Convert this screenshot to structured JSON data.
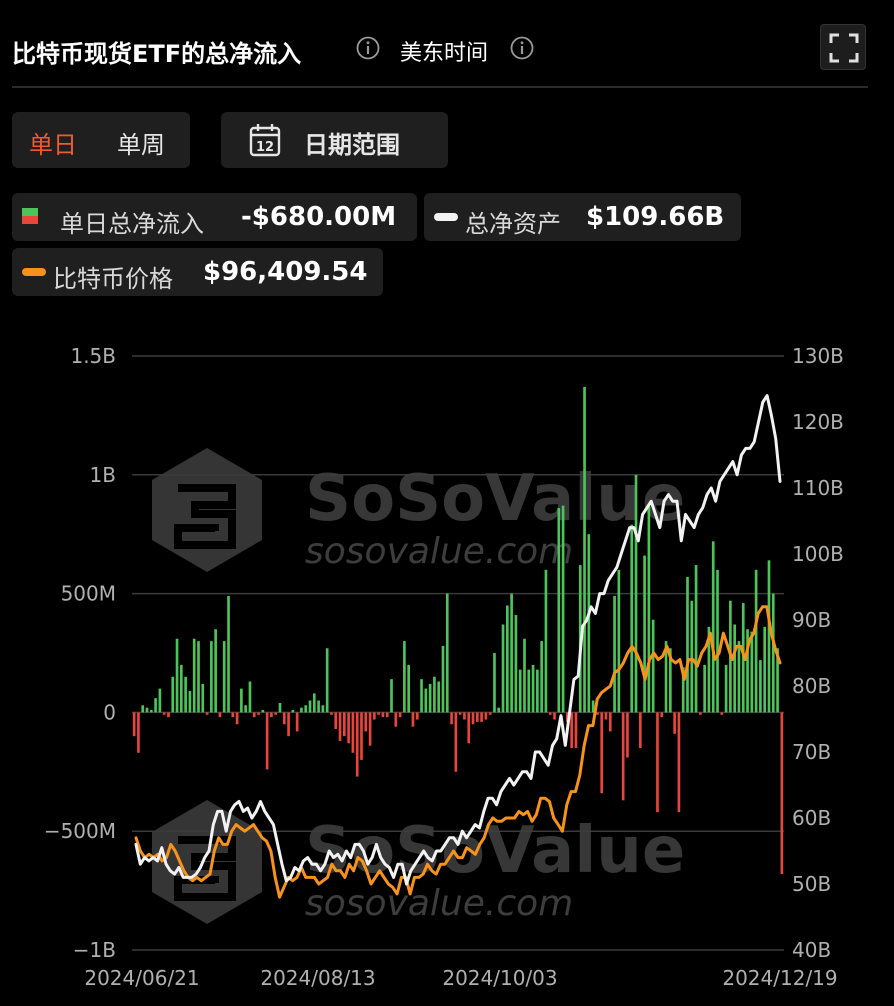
{
  "header": {
    "title": "比特币现货ETF的总净流入",
    "timezone": "美东时间"
  },
  "period_tabs": [
    {
      "label": "单日",
      "active": true
    },
    {
      "label": "单周",
      "active": false
    }
  ],
  "date_range_button": {
    "label": "日期范围",
    "calendar_day": "12"
  },
  "legend": {
    "inflow": {
      "label": "单日总净流入",
      "value": "-$680.00M"
    },
    "assets": {
      "label": "总净资产",
      "value": "$109.66B"
    },
    "price": {
      "label": "比特币价格",
      "value": "$96,409.54"
    }
  },
  "watermark": {
    "brand": "SoSoValue",
    "url": "sosovalue.com"
  },
  "colors": {
    "inflow_positive": "#4cc45a",
    "inflow_negative": "#e8453c",
    "assets_line": "#f2f2f2",
    "price_line": "#f7931a",
    "accent": "#ef5a33"
  },
  "chart_data": {
    "type": "bar",
    "title": "比特币现货ETF的总净流入",
    "x_tick_labels": [
      "2024/06/21",
      "2024/08/13",
      "2024/10/03",
      "2024/12/19"
    ],
    "left_axis": {
      "ticks": [
        "1.5B",
        "1B",
        "500M",
        "0",
        "−500M",
        "−1B"
      ],
      "range": [
        -1000,
        1500
      ],
      "unit": "M"
    },
    "right_axis": {
      "ticks": [
        "130B",
        "120B",
        "110B",
        "100B",
        "90B",
        "80B",
        "70B",
        "60B",
        "50B",
        "40B"
      ],
      "range": [
        40,
        130
      ],
      "unit": "B"
    },
    "grid": true,
    "series": [
      {
        "name": "单日总净流入",
        "type": "bar",
        "axis": "left",
        "values": [
          -100,
          -170,
          30,
          20,
          10,
          60,
          100,
          -10,
          -20,
          150,
          310,
          200,
          150,
          90,
          310,
          300,
          120,
          -10,
          300,
          350,
          -20,
          300,
          490,
          -20,
          -50,
          100,
          30,
          130,
          -20,
          -10,
          10,
          -240,
          -20,
          -10,
          40,
          -50,
          -100,
          10,
          -80,
          20,
          30,
          50,
          80,
          50,
          30,
          270,
          -10,
          -70,
          -120,
          -100,
          -130,
          -170,
          -270,
          -200,
          -80,
          -140,
          -30,
          -10,
          -20,
          -20,
          140,
          -60,
          -20,
          300,
          200,
          -60,
          -30,
          140,
          100,
          120,
          150,
          130,
          280,
          500,
          -50,
          -250,
          -10,
          -30,
          -130,
          -50,
          -40,
          -40,
          -30,
          -10,
          250,
          20,
          370,
          450,
          500,
          410,
          180,
          310,
          180,
          200,
          180,
          300,
          600,
          -10,
          -30,
          860,
          870,
          -40,
          -150,
          -150,
          620,
          1370,
          750,
          50,
          -10,
          -340,
          -30,
          -80,
          490,
          600,
          -370,
          -190,
          790,
          1000,
          -150,
          660,
          870,
          390,
          -420,
          -20,
          300,
          270,
          -90,
          -420,
          190,
          570,
          470,
          620,
          -10,
          200,
          360,
          720,
          600,
          -10,
          200,
          470,
          370,
          300,
          460,
          350,
          340,
          600,
          220,
          360,
          640,
          500,
          270,
          -680
        ]
      },
      {
        "name": "总净资产",
        "type": "line",
        "axis": "right",
        "values": [
          56,
          53,
          54,
          53.5,
          54,
          53.5,
          55.5,
          53,
          52,
          51.5,
          52.5,
          51,
          51,
          51,
          51.5,
          52.5,
          54,
          55,
          59,
          61,
          61,
          58,
          61,
          62,
          62.5,
          61,
          61.5,
          60,
          61,
          62.5,
          61,
          60,
          59,
          56,
          53,
          50.5,
          51,
          52.5,
          52,
          53.5,
          54,
          53,
          53,
          52,
          53,
          55,
          54,
          54.5,
          53.5,
          55,
          54,
          56,
          56,
          55,
          53,
          54,
          56,
          54,
          53,
          52.5,
          51,
          53,
          53,
          50,
          52,
          53,
          54,
          55,
          54,
          53.5,
          55,
          55,
          56,
          57,
          57,
          56,
          58,
          57,
          58,
          59,
          58.5,
          61,
          63,
          63,
          62,
          64,
          65,
          66,
          65,
          66,
          67,
          67,
          66,
          70,
          70,
          69,
          68,
          71,
          72,
          75.5,
          71,
          76,
          81,
          81.5,
          89,
          90,
          92,
          91,
          94,
          94,
          96,
          97,
          98,
          100,
          102,
          104,
          104,
          102,
          106,
          107,
          108,
          106,
          104,
          108,
          109,
          108,
          108,
          102,
          106,
          105,
          104,
          106,
          107,
          109,
          110,
          108,
          111,
          112,
          113,
          114,
          112,
          115,
          116,
          116,
          117,
          120,
          123,
          124,
          121,
          117.5,
          111
        ]
      },
      {
        "name": "比特币价格",
        "type": "line",
        "axis": "right",
        "values": [
          57,
          55,
          54,
          54.5,
          54,
          54.5,
          53.5,
          54,
          56,
          55,
          53.5,
          52,
          51,
          50.5,
          51,
          50.5,
          51,
          51.5,
          55,
          57,
          56,
          56,
          58,
          59,
          58.5,
          58,
          58.5,
          59,
          58,
          57,
          56.5,
          55,
          51,
          48,
          49.5,
          51,
          50.5,
          51,
          52.5,
          51,
          51,
          51,
          50,
          50.5,
          51,
          53,
          52,
          52,
          51,
          53,
          52,
          54,
          53.5,
          52,
          50,
          51,
          52,
          51,
          50,
          49.5,
          48.5,
          51,
          51,
          48.5,
          51,
          51,
          51.5,
          53,
          52,
          51.5,
          53,
          53,
          54,
          55,
          54,
          54,
          55.5,
          55,
          54.5,
          56,
          57,
          59,
          60,
          59.5,
          59.5,
          60,
          60,
          60,
          61,
          60.5,
          61,
          59.5,
          60.5,
          63,
          63,
          62.5,
          60,
          59,
          58,
          62,
          64,
          64,
          66.5,
          71,
          74,
          74,
          78,
          79,
          79.5,
          80,
          82,
          82.5,
          83.5,
          85,
          86,
          85,
          83.5,
          81,
          84,
          85,
          84,
          84.5,
          86,
          84,
          83.5,
          84,
          81,
          84,
          84,
          83,
          85,
          86,
          88,
          84,
          85,
          88,
          86,
          84,
          86,
          86,
          84,
          87,
          88,
          91,
          92,
          92,
          88,
          85.5,
          83.5
        ]
      }
    ]
  }
}
